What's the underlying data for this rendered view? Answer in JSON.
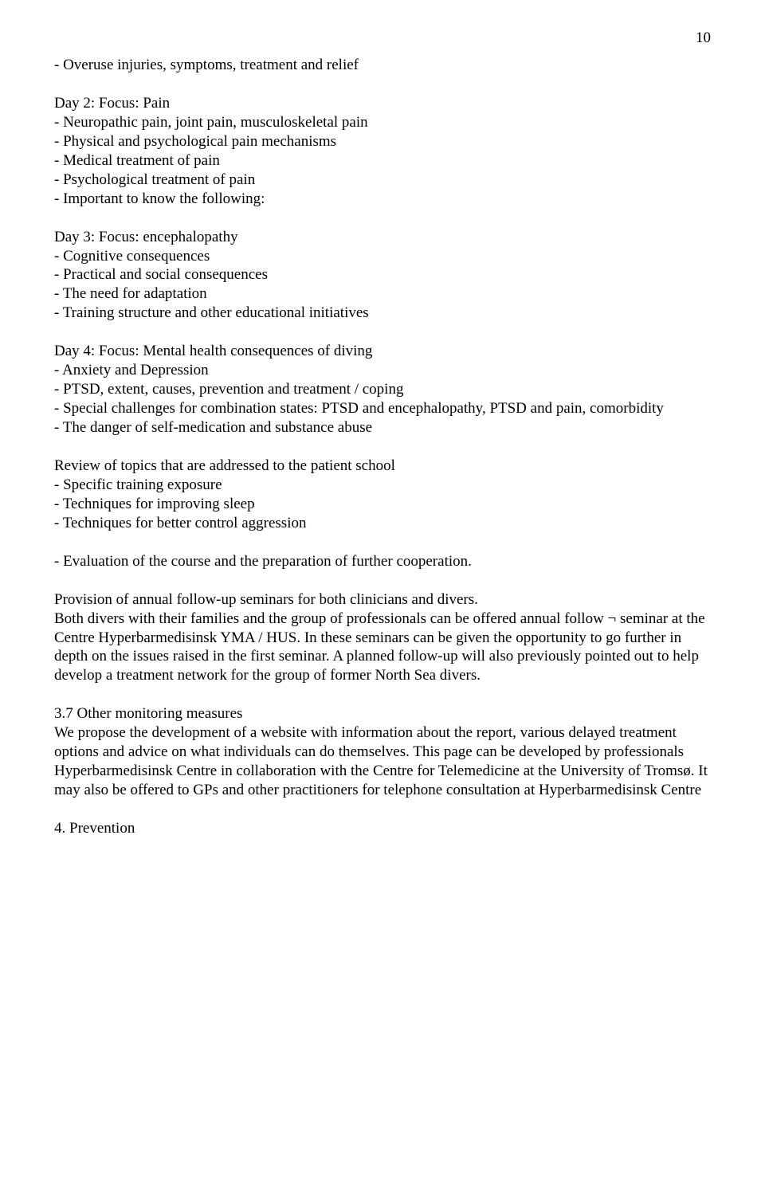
{
  "page_number": "10",
  "sections": [
    {
      "lines": [
        "- Overuse injuries, symptoms, treatment and relief"
      ]
    },
    {
      "lines": [
        "Day 2: Focus: Pain",
        "- Neuropathic pain, joint pain, musculoskeletal pain",
        "- Physical and psychological pain mechanisms",
        "- Medical treatment of pain",
        "- Psychological treatment of pain",
        "- Important to know the following:"
      ]
    },
    {
      "lines": [
        "Day 3: Focus: encephalopathy",
        "- Cognitive consequences",
        "- Practical and social consequences",
        "- The need for adaptation",
        "- Training structure and other educational initiatives"
      ]
    },
    {
      "lines": [
        "Day 4: Focus: Mental health consequences of diving",
        "- Anxiety and Depression",
        "- PTSD, extent, causes, prevention and treatment / coping",
        "- Special challenges for combination states: PTSD and encephalopathy, PTSD and pain, comorbidity",
        "- The danger of self-medication and substance abuse"
      ]
    },
    {
      "lines": [
        "Review of topics that are addressed to the patient school",
        "- Specific training exposure",
        "- Techniques for improving sleep",
        "- Techniques for better control aggression"
      ]
    },
    {
      "lines": [
        "- Evaluation of the course and the preparation of further cooperation."
      ]
    },
    {
      "lines": [
        "Provision of annual follow-up seminars for both clinicians and divers.",
        "Both divers with their families and the group of professionals can be offered annual follow ¬ seminar at the Centre Hyperbarmedisinsk YMA / HUS. In these seminars can be given the opportunity to go further in depth on the issues raised in the first seminar. A planned follow-up will also previously pointed out to help develop a treatment network for the group of former North Sea divers."
      ]
    },
    {
      "lines": [
        "3.7 Other monitoring measures",
        "We propose the development of a website with information about the report, various delayed treatment options and advice on what individuals can do themselves. This page can be developed by professionals Hyperbarmedisinsk Centre in collaboration with the Centre for Telemedicine at the University of Tromsø. It may also be offered to GPs and other practitioners for telephone consultation at Hyperbarmedisinsk Centre"
      ]
    },
    {
      "lines": [
        "4. Prevention"
      ],
      "tight": true
    }
  ]
}
